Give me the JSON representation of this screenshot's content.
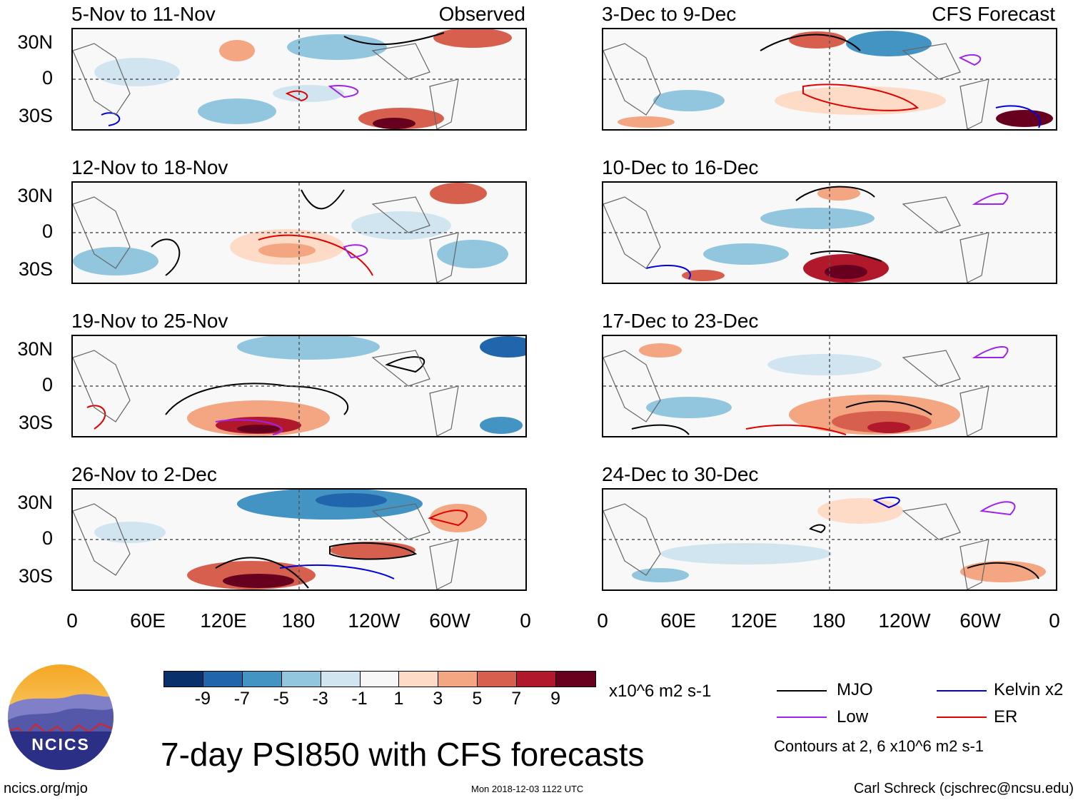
{
  "panel_labels": {
    "observed": "Observed",
    "forecast": "CFS Forecast"
  },
  "panels_observed": [
    {
      "title": "5-Nov to 11-Nov"
    },
    {
      "title": "12-Nov to 18-Nov"
    },
    {
      "title": "19-Nov to 25-Nov"
    },
    {
      "title": "26-Nov to 2-Dec"
    }
  ],
  "panels_forecast": [
    {
      "title": "3-Dec to 9-Dec"
    },
    {
      "title": "10-Dec to 16-Dec"
    },
    {
      "title": "17-Dec to 23-Dec"
    },
    {
      "title": "24-Dec to 30-Dec"
    }
  ],
  "y_axis_labels": [
    "30N",
    "0",
    "30S"
  ],
  "x_axis_labels": [
    "0",
    "60E",
    "120E",
    "180",
    "120W",
    "60W",
    "0"
  ],
  "colorbar": {
    "unit": "x10^6 m2 s-1",
    "ticks": [
      "-9",
      "-7",
      "-5",
      "-3",
      "-1",
      "1",
      "3",
      "5",
      "7",
      "9"
    ],
    "colors": [
      "#08306b",
      "#2166ac",
      "#4393c3",
      "#92c5de",
      "#d1e5f0",
      "#f7f7f7",
      "#fddbc7",
      "#f4a582",
      "#d6604d",
      "#b2182b",
      "#67001f"
    ]
  },
  "legend": {
    "items": [
      {
        "label": "MJO",
        "color": "#000000"
      },
      {
        "label": "Kelvin x2",
        "color": "#0000dd"
      },
      {
        "label": "Low",
        "color": "#a020f0"
      },
      {
        "label": "ER",
        "color": "#e00000"
      }
    ],
    "contour_note": "Contours at 2, 6 x10^6 m2 s-1"
  },
  "logo_text": "NCICS",
  "main_title": "7-day PSI850 with CFS forecasts",
  "footer": {
    "left": "ncics.org/mjo",
    "center": "Mon 2018-12-03 1122 UTC",
    "right": "Carl Schreck (cjschrec@ncsu.edu)"
  }
}
